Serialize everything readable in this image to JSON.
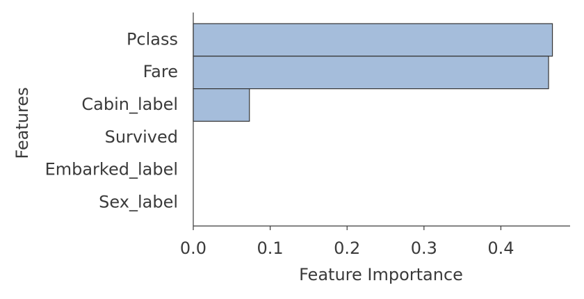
{
  "chart_data": {
    "type": "bar",
    "orientation": "horizontal",
    "xlabel": "Feature Importance",
    "ylabel": "Features",
    "categories": [
      "Pclass",
      "Fare",
      "Cabin_label",
      "Survived",
      "Embarked_label",
      "Sex_label"
    ],
    "values": [
      0.467,
      0.462,
      0.073,
      0,
      0,
      0
    ],
    "color": "#a5bddb",
    "edgecolor": "#333333",
    "xlim": [
      0,
      0.49
    ],
    "xticks": [
      {
        "value": 0,
        "label": "0.0"
      },
      0.1,
      0.2,
      0.3,
      0.4
    ],
    "grid": false
  }
}
